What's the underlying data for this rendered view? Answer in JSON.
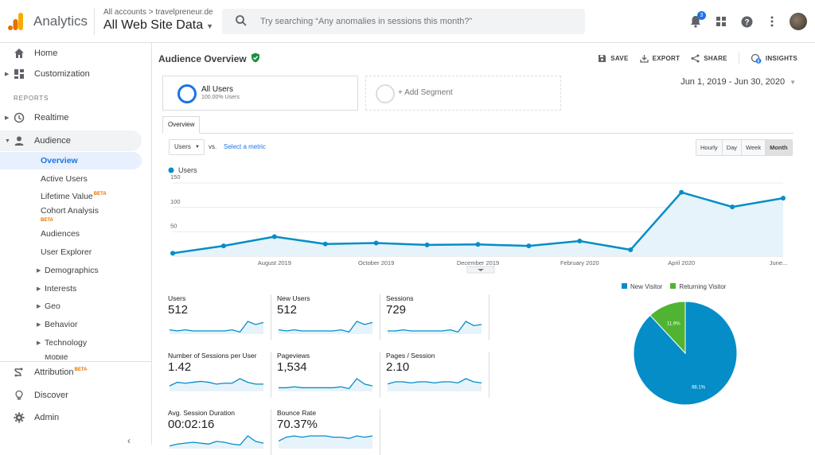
{
  "app": {
    "brand": "Analytics",
    "breadcrumb": "All accounts > travelpreneur.de",
    "property": "All Web Site Data"
  },
  "search": {
    "placeholder": "Try searching “Any anomalies in sessions this month?”"
  },
  "topbar": {
    "notification_count": "3",
    "icons": [
      "bell-icon",
      "apps-icon",
      "help-icon",
      "more-vert-icon",
      "avatar"
    ]
  },
  "sidebar": {
    "top_items": [
      {
        "label": "Home",
        "icon": "home-icon"
      },
      {
        "label": "Customization",
        "icon": "dashboard-icon"
      }
    ],
    "section_label": "REPORTS",
    "realtime": "Realtime",
    "audience": "Audience",
    "audience_items": [
      {
        "label": "Overview",
        "selected": true
      },
      {
        "label": "Active Users"
      },
      {
        "label": "Lifetime Value",
        "badge": "BETA"
      },
      {
        "label": "Cohort Analysis",
        "badge": "BETA"
      },
      {
        "label": "Audiences"
      },
      {
        "label": "User Explorer"
      },
      {
        "label": "Demographics",
        "expandable": true
      },
      {
        "label": "Interests",
        "expandable": true
      },
      {
        "label": "Geo",
        "expandable": true
      },
      {
        "label": "Behavior",
        "expandable": true
      },
      {
        "label": "Technology",
        "expandable": true
      },
      {
        "label": "Mobile",
        "expandable": true
      }
    ],
    "bottom_items": [
      {
        "label": "Attribution",
        "badge": "BETA",
        "icon": "attribution-icon"
      },
      {
        "label": "Discover",
        "icon": "lightbulb-icon"
      },
      {
        "label": "Admin",
        "icon": "gear-icon"
      }
    ]
  },
  "main": {
    "title": "Audience Overview",
    "actions": [
      {
        "label": "SAVE",
        "icon": "save-icon"
      },
      {
        "label": "EXPORT",
        "icon": "export-icon"
      },
      {
        "label": "SHARE",
        "icon": "share-icon"
      },
      {
        "label": "INSIGHTS",
        "icon": "insights-icon",
        "badge": "8"
      }
    ],
    "segments": {
      "active_name": "All Users",
      "active_sub": "100.00% Users",
      "add": "+ Add Segment"
    },
    "date_range": "Jun 1, 2019 - Jun 30, 2020",
    "tab": "Overview",
    "metric_select": "Users",
    "vs": "vs.",
    "select_metric": "Select a metric",
    "granularity": [
      {
        "label": "Hourly"
      },
      {
        "label": "Day"
      },
      {
        "label": "Week"
      },
      {
        "label": "Month",
        "active": true
      }
    ]
  },
  "chart_data": [
    {
      "type": "line",
      "series": [
        {
          "name": "Users",
          "values": [
            6,
            21,
            40,
            25,
            27,
            23,
            24,
            21,
            31,
            13,
            131,
            101,
            119
          ]
        }
      ],
      "y_ticks": [
        50,
        100,
        150
      ],
      "x_tick_labels": [
        "August 2019",
        "October 2019",
        "December 2019",
        "February 2020",
        "April 2020",
        "June..."
      ],
      "ylim": [
        0,
        160
      ],
      "grid": true,
      "legend": "top-left",
      "color": "#058dc7"
    },
    {
      "type": "pie",
      "slices": [
        {
          "name": "New Visitor",
          "value": 88.1,
          "color": "#058dc7"
        },
        {
          "name": "Returning Visitor",
          "value": 11.9,
          "color": "#50b432"
        }
      ],
      "labels": [
        "88.1%",
        "11.9%"
      ],
      "legend": "top"
    }
  ],
  "kpis": [
    {
      "label": "Users",
      "value": "512",
      "spark": [
        4,
        3,
        4,
        3,
        3,
        3,
        3,
        3,
        4,
        2,
        12,
        9,
        11
      ]
    },
    {
      "label": "New Users",
      "value": "512",
      "spark": [
        4,
        3,
        4,
        3,
        3,
        3,
        3,
        3,
        4,
        2,
        12,
        9,
        11
      ]
    },
    {
      "label": "Sessions",
      "value": "729",
      "spark": [
        3,
        3,
        4,
        3,
        3,
        3,
        3,
        3,
        4,
        2,
        12,
        8,
        9
      ]
    },
    {
      "label": "Number of Sessions per User",
      "value": "1.42",
      "spark": [
        6,
        10,
        9,
        10,
        11,
        10,
        8,
        9,
        9,
        14,
        10,
        8,
        8
      ]
    },
    {
      "label": "Pageviews",
      "value": "1,534",
      "spark": [
        4,
        4,
        5,
        4,
        4,
        4,
        4,
        4,
        5,
        3,
        14,
        8,
        6
      ]
    },
    {
      "label": "Pages / Session",
      "value": "2.10",
      "spark": [
        7,
        9,
        9,
        8,
        9,
        9,
        8,
        9,
        9,
        8,
        12,
        9,
        8
      ]
    },
    {
      "label": "Avg. Session Duration",
      "value": "00:02:16",
      "spark": [
        3,
        5,
        6,
        7,
        6,
        5,
        8,
        7,
        5,
        4,
        14,
        8,
        6
      ]
    },
    {
      "label": "Bounce Rate",
      "value": "70.37%",
      "spark": [
        6,
        9,
        10,
        9,
        10,
        10,
        10,
        9,
        9,
        8,
        10,
        9,
        10
      ]
    }
  ],
  "colors": {
    "accent": "#1a73e8",
    "line": "#058dc7",
    "returning": "#50b432",
    "beta": "#e37400"
  }
}
